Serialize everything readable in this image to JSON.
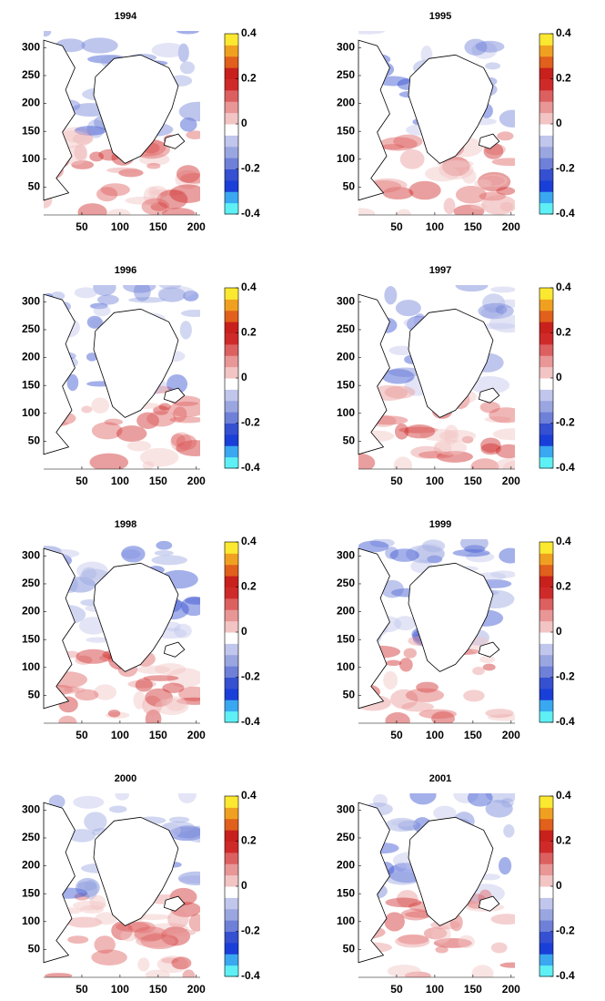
{
  "chart_data": [
    {
      "type": "heatmap",
      "title": "1994",
      "xlim": [
        0,
        205
      ],
      "ylim": [
        0,
        330
      ],
      "xticks": [
        50,
        100,
        150,
        200
      ],
      "yticks": [
        50,
        100,
        150,
        200,
        250,
        300
      ],
      "clim": [
        -0.4,
        0.4
      ],
      "cticks": [
        -0.4,
        -0.2,
        0,
        0.2,
        0.4
      ],
      "colormap": [
        "#5ef0f5",
        "#3aa8f0",
        "#1a3fd8",
        "#3550d0",
        "#6e80d8",
        "#9aa6e0",
        "#c0c6ec",
        "#ffffff",
        "#f2c4c4",
        "#e89696",
        "#dd6060",
        "#cf2a2a",
        "#c8201c",
        "#e0601c",
        "#f0a020",
        "#fbe830"
      ]
    },
    {
      "type": "heatmap",
      "title": "1995",
      "xlim": [
        0,
        205
      ],
      "ylim": [
        0,
        330
      ],
      "xticks": [
        50,
        100,
        150,
        200
      ],
      "yticks": [
        50,
        100,
        150,
        200,
        250,
        300
      ],
      "clim": [
        -0.4,
        0.4
      ],
      "cticks": [
        -0.4,
        -0.2,
        0,
        0.2,
        0.4
      ],
      "colormap": [
        "#5ef0f5",
        "#3aa8f0",
        "#1a3fd8",
        "#3550d0",
        "#6e80d8",
        "#9aa6e0",
        "#c0c6ec",
        "#ffffff",
        "#f2c4c4",
        "#e89696",
        "#dd6060",
        "#cf2a2a",
        "#c8201c",
        "#e0601c",
        "#f0a020",
        "#fbe830"
      ]
    },
    {
      "type": "heatmap",
      "title": "1996",
      "xlim": [
        0,
        205
      ],
      "ylim": [
        0,
        330
      ],
      "xticks": [
        50,
        100,
        150,
        200
      ],
      "yticks": [
        50,
        100,
        150,
        200,
        250,
        300
      ],
      "clim": [
        -0.4,
        0.4
      ],
      "cticks": [
        -0.4,
        -0.2,
        0,
        0.2,
        0.4
      ],
      "colormap": [
        "#5ef0f5",
        "#3aa8f0",
        "#1a3fd8",
        "#3550d0",
        "#6e80d8",
        "#9aa6e0",
        "#c0c6ec",
        "#ffffff",
        "#f2c4c4",
        "#e89696",
        "#dd6060",
        "#cf2a2a",
        "#c8201c",
        "#e0601c",
        "#f0a020",
        "#fbe830"
      ]
    },
    {
      "type": "heatmap",
      "title": "1997",
      "xlim": [
        0,
        205
      ],
      "ylim": [
        0,
        330
      ],
      "xticks": [
        50,
        100,
        150,
        200
      ],
      "yticks": [
        50,
        100,
        150,
        200,
        250,
        300
      ],
      "clim": [
        -0.4,
        0.4
      ],
      "cticks": [
        -0.4,
        -0.2,
        0,
        0.2,
        0.4
      ],
      "colormap": [
        "#5ef0f5",
        "#3aa8f0",
        "#1a3fd8",
        "#3550d0",
        "#6e80d8",
        "#9aa6e0",
        "#c0c6ec",
        "#ffffff",
        "#f2c4c4",
        "#e89696",
        "#dd6060",
        "#cf2a2a",
        "#c8201c",
        "#e0601c",
        "#f0a020",
        "#fbe830"
      ]
    },
    {
      "type": "heatmap",
      "title": "1998",
      "xlim": [
        0,
        205
      ],
      "ylim": [
        0,
        330
      ],
      "xticks": [
        50,
        100,
        150,
        200
      ],
      "yticks": [
        50,
        100,
        150,
        200,
        250,
        300
      ],
      "clim": [
        -0.4,
        0.4
      ],
      "cticks": [
        -0.4,
        -0.2,
        0,
        0.2,
        0.4
      ],
      "colormap": [
        "#5ef0f5",
        "#3aa8f0",
        "#1a3fd8",
        "#3550d0",
        "#6e80d8",
        "#9aa6e0",
        "#c0c6ec",
        "#ffffff",
        "#f2c4c4",
        "#e89696",
        "#dd6060",
        "#cf2a2a",
        "#c8201c",
        "#e0601c",
        "#f0a020",
        "#fbe830"
      ]
    },
    {
      "type": "heatmap",
      "title": "1999",
      "xlim": [
        0,
        205
      ],
      "ylim": [
        0,
        330
      ],
      "xticks": [
        50,
        100,
        150,
        200
      ],
      "yticks": [
        50,
        100,
        150,
        200,
        250,
        300
      ],
      "clim": [
        -0.4,
        0.4
      ],
      "cticks": [
        -0.4,
        -0.2,
        0,
        0.2,
        0.4
      ],
      "colormap": [
        "#5ef0f5",
        "#3aa8f0",
        "#1a3fd8",
        "#3550d0",
        "#6e80d8",
        "#9aa6e0",
        "#c0c6ec",
        "#ffffff",
        "#f2c4c4",
        "#e89696",
        "#dd6060",
        "#cf2a2a",
        "#c8201c",
        "#e0601c",
        "#f0a020",
        "#fbe830"
      ]
    },
    {
      "type": "heatmap",
      "title": "2000",
      "xlim": [
        0,
        205
      ],
      "ylim": [
        0,
        330
      ],
      "xticks": [
        50,
        100,
        150,
        200
      ],
      "yticks": [
        50,
        100,
        150,
        200,
        250,
        300
      ],
      "clim": [
        -0.4,
        0.4
      ],
      "cticks": [
        -0.4,
        -0.2,
        0,
        0.2,
        0.4
      ],
      "colormap": [
        "#5ef0f5",
        "#3aa8f0",
        "#1a3fd8",
        "#3550d0",
        "#6e80d8",
        "#9aa6e0",
        "#c0c6ec",
        "#ffffff",
        "#f2c4c4",
        "#e89696",
        "#dd6060",
        "#cf2a2a",
        "#c8201c",
        "#e0601c",
        "#f0a020",
        "#fbe830"
      ]
    },
    {
      "type": "heatmap",
      "title": "2001",
      "xlim": [
        0,
        205
      ],
      "ylim": [
        0,
        330
      ],
      "xticks": [
        50,
        100,
        150,
        200
      ],
      "yticks": [
        50,
        100,
        150,
        200,
        250,
        300
      ],
      "clim": [
        -0.4,
        0.4
      ],
      "cticks": [
        -0.4,
        -0.2,
        0,
        0.2,
        0.4
      ],
      "colormap": [
        "#5ef0f5",
        "#3aa8f0",
        "#1a3fd8",
        "#3550d0",
        "#6e80d8",
        "#9aa6e0",
        "#c0c6ec",
        "#ffffff",
        "#f2c4c4",
        "#e89696",
        "#dd6060",
        "#cf2a2a",
        "#c8201c",
        "#e0601c",
        "#f0a020",
        "#fbe830"
      ]
    }
  ]
}
